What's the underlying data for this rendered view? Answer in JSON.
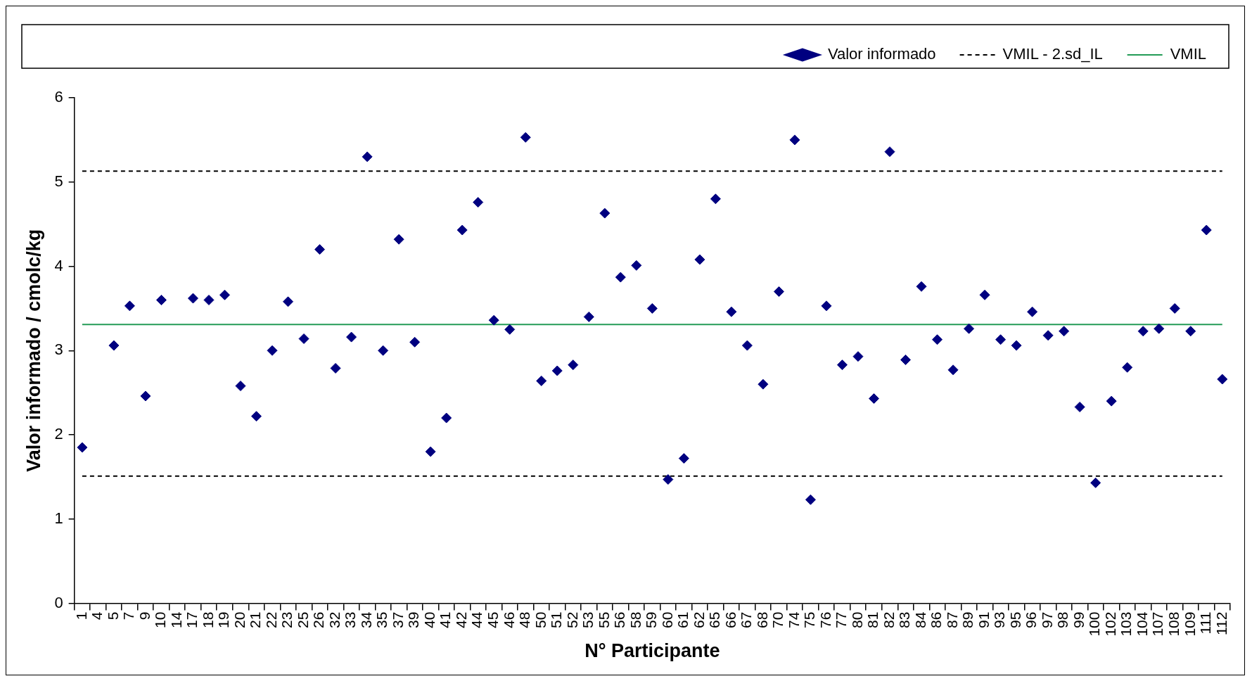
{
  "chart_data": {
    "type": "scatter",
    "xlabel": "N° Participante",
    "ylabel": "Valor informado / cmolc/kg",
    "categories": [
      "1",
      "4",
      "5",
      "7",
      "9",
      "10",
      "14",
      "17",
      "18",
      "19",
      "20",
      "21",
      "22",
      "23",
      "25",
      "26",
      "32",
      "33",
      "34",
      "35",
      "37",
      "39",
      "40",
      "41",
      "42",
      "44",
      "45",
      "46",
      "48",
      "50",
      "51",
      "52",
      "53",
      "55",
      "56",
      "58",
      "59",
      "60",
      "61",
      "62",
      "65",
      "66",
      "67",
      "68",
      "70",
      "74",
      "75",
      "76",
      "77",
      "80",
      "81",
      "82",
      "83",
      "84",
      "86",
      "87",
      "89",
      "91",
      "93",
      "95",
      "96",
      "97",
      "98",
      "99",
      "100",
      "102",
      "103",
      "104",
      "107",
      "108",
      "109",
      "111",
      "112"
    ],
    "series": [
      {
        "name": "Valor informado",
        "type": "scatter",
        "marker": "diamond",
        "color": "#000080",
        "values": [
          1.85,
          null,
          3.06,
          3.53,
          2.46,
          3.6,
          null,
          3.62,
          3.6,
          3.66,
          2.58,
          2.22,
          3.0,
          3.58,
          3.14,
          4.2,
          2.79,
          3.16,
          5.3,
          3.0,
          4.32,
          3.1,
          1.8,
          2.2,
          4.43,
          4.76,
          3.36,
          3.25,
          5.53,
          2.64,
          2.76,
          2.83,
          3.4,
          4.63,
          3.87,
          4.01,
          3.5,
          1.47,
          1.72,
          4.08,
          4.8,
          3.46,
          3.06,
          2.6,
          3.7,
          5.5,
          1.23,
          3.53,
          2.83,
          2.93,
          2.43,
          5.36,
          2.89,
          3.76,
          3.13,
          2.77,
          3.26,
          3.66,
          3.13,
          3.06,
          3.46,
          3.18,
          3.23,
          2.33,
          1.43,
          2.4,
          2.8,
          3.23,
          3.26,
          3.5,
          3.23,
          4.43,
          2.66
        ]
      },
      {
        "name": "VMIL - 2.sd_IL",
        "type": "line",
        "marker": "none",
        "line_style": "dashed",
        "color": "#000000",
        "values": [
          1.51,
          1.51,
          1.51,
          1.51,
          1.51,
          1.51,
          1.51,
          1.51,
          1.51,
          1.51,
          1.51,
          1.51,
          1.51,
          1.51,
          1.51,
          1.51,
          1.51,
          1.51,
          1.51,
          1.51,
          1.51,
          1.51,
          1.51,
          1.51,
          1.51,
          1.51,
          1.51,
          1.51,
          1.51,
          1.51,
          1.51,
          1.51,
          1.51,
          1.51,
          1.51,
          1.51,
          1.51,
          1.51,
          1.51,
          1.51,
          1.51,
          1.51,
          1.51,
          1.51,
          1.51,
          1.51,
          1.51,
          1.51,
          1.51,
          1.51,
          1.51,
          1.51,
          1.51,
          1.51,
          1.51,
          1.51,
          1.51,
          1.51,
          1.51,
          1.51,
          1.51,
          1.51,
          1.51,
          1.51,
          1.51,
          1.51,
          1.51,
          1.51,
          1.51,
          1.51,
          1.51,
          1.51,
          1.51
        ]
      },
      {
        "name": "VMIL",
        "type": "line",
        "marker": "none",
        "line_style": "solid",
        "color": "#239b56",
        "values": [
          3.31,
          3.31,
          3.31,
          3.31,
          3.31,
          3.31,
          3.31,
          3.31,
          3.31,
          3.31,
          3.31,
          3.31,
          3.31,
          3.31,
          3.31,
          3.31,
          3.31,
          3.31,
          3.31,
          3.31,
          3.31,
          3.31,
          3.31,
          3.31,
          3.31,
          3.31,
          3.31,
          3.31,
          3.31,
          3.31,
          3.31,
          3.31,
          3.31,
          3.31,
          3.31,
          3.31,
          3.31,
          3.31,
          3.31,
          3.31,
          3.31,
          3.31,
          3.31,
          3.31,
          3.31,
          3.31,
          3.31,
          3.31,
          3.31,
          3.31,
          3.31,
          3.31,
          3.31,
          3.31,
          3.31,
          3.31,
          3.31,
          3.31,
          3.31,
          3.31,
          3.31,
          3.31,
          3.31,
          3.31,
          3.31,
          3.31,
          3.31,
          3.31,
          3.31,
          3.31,
          3.31,
          3.31,
          3.31
        ]
      },
      {
        "type": "line",
        "marker": "none",
        "line_style": "dashed",
        "color": "#000000",
        "values": [
          5.13,
          5.13,
          5.13,
          5.13,
          5.13,
          5.13,
          5.13,
          5.13,
          5.13,
          5.13,
          5.13,
          5.13,
          5.13,
          5.13,
          5.13,
          5.13,
          5.13,
          5.13,
          5.13,
          5.13,
          5.13,
          5.13,
          5.13,
          5.13,
          5.13,
          5.13,
          5.13,
          5.13,
          5.13,
          5.13,
          5.13,
          5.13,
          5.13,
          5.13,
          5.13,
          5.13,
          5.13,
          5.13,
          5.13,
          5.13,
          5.13,
          5.13,
          5.13,
          5.13,
          5.13,
          5.13,
          5.13,
          5.13,
          5.13,
          5.13,
          5.13,
          5.13,
          5.13,
          5.13,
          5.13,
          5.13,
          5.13,
          5.13,
          5.13,
          5.13,
          5.13,
          5.13,
          5.13,
          5.13,
          5.13,
          5.13,
          5.13,
          5.13,
          5.13,
          5.13,
          5.13,
          5.13,
          5.13
        ]
      }
    ],
    "ylim": [
      0,
      6
    ],
    "yticks": [
      0,
      1,
      2,
      3,
      4,
      5,
      6
    ],
    "grid": false,
    "legend": "top right"
  }
}
